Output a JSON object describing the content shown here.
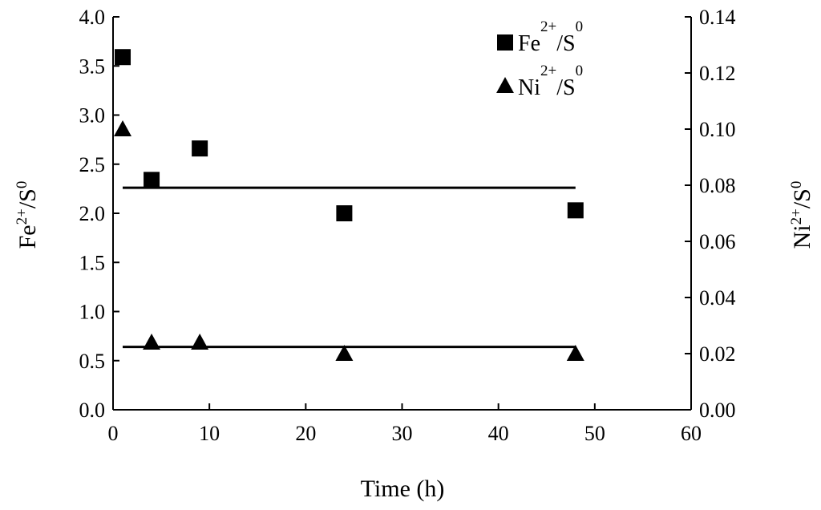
{
  "chart_data": {
    "type": "scatter",
    "title": "",
    "xlabel": "Time (h)",
    "ylabel": {
      "base": "Fe",
      "sup": "2+",
      "rest": "/S",
      "sup2": "0"
    },
    "y2label": {
      "base": "Ni",
      "sup": "2+",
      "rest": "/S",
      "sup2": "0"
    },
    "xlim": [
      0,
      60
    ],
    "ylim": [
      0,
      4.0
    ],
    "y2lim": [
      0,
      0.14
    ],
    "x_ticks": [
      "0",
      "10",
      "20",
      "30",
      "40",
      "50",
      "60"
    ],
    "y_ticks": [
      "0.0",
      "0.5",
      "1.0",
      "1.5",
      "2.0",
      "2.5",
      "3.0",
      "3.5",
      "4.0"
    ],
    "y2_ticks": [
      "0.00",
      "0.02",
      "0.04",
      "0.06",
      "0.08",
      "0.10",
      "0.12",
      "0.14"
    ],
    "grid": false,
    "legend_position": "top-right",
    "series": [
      {
        "name": {
          "base": "Fe",
          "sup": "2+",
          "rest": "/S",
          "sup2": "0"
        },
        "axis": "left",
        "marker": "square",
        "x": [
          1,
          4,
          9,
          24,
          48
        ],
        "y": [
          3.59,
          2.34,
          2.66,
          2.0,
          2.03
        ]
      },
      {
        "name": {
          "base": "Ni",
          "sup": "2+",
          "rest": "/S",
          "sup2": "0"
        },
        "axis": "right",
        "marker": "triangle",
        "x": [
          1,
          4,
          9,
          24,
          48
        ],
        "y": [
          0.1,
          0.024,
          0.024,
          0.02,
          0.02
        ]
      }
    ],
    "reference_lines": [
      {
        "axis": "left",
        "y": 2.26,
        "x_start": 1,
        "x_end": 48
      },
      {
        "axis": "left",
        "y": 0.64,
        "x_start": 1,
        "x_end": 48
      }
    ]
  }
}
